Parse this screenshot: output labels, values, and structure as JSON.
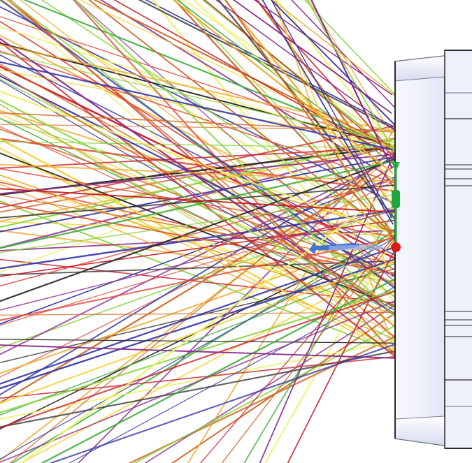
{
  "scene": {
    "background_color": "#ffffff",
    "ray_colors": [
      "#c9202a",
      "#e2483d",
      "#f2a82b",
      "#f6d23f",
      "#eef067",
      "#86d43a",
      "#3fae3f",
      "#2b2b2b",
      "#3a3aa8",
      "#8a2a8a",
      "#cf6a2a"
    ],
    "housing_fill": "#eef1fb",
    "housing_stroke": "#2a2a2a",
    "marker_red": "#e01818",
    "marker_green": "#1ea83a",
    "marker_blue": "#2f6bdc"
  }
}
